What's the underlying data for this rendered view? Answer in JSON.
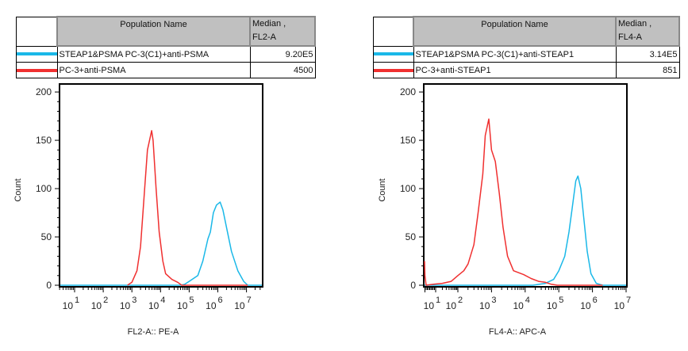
{
  "chart_data": [
    {
      "type": "line",
      "legend": {
        "header_name": "Population Name",
        "header_stat": [
          "Median ,",
          "FL2-A"
        ],
        "rows": [
          {
            "name": "STEAP1&PSMA PC-3(C1)+anti-PSMA",
            "median": "9.20E5",
            "color": "#1ab8e8"
          },
          {
            "name": "PC-3+anti-PSMA",
            "median": "4500",
            "color": "#f03030"
          }
        ]
      },
      "xlabel": "FL2-A:: PE-A",
      "ylabel": "Count",
      "x_scale": "log",
      "xlim": [
        3,
        38000000
      ],
      "ylim": [
        0,
        205
      ],
      "yticks": [
        0,
        50,
        100,
        150,
        200
      ],
      "xticks_exp": [
        1,
        2,
        3,
        4,
        5,
        6,
        7
      ],
      "series": [
        {
          "color": "#1ab8e8",
          "points": [
            [
              3,
              0
            ],
            [
              50000,
              0
            ],
            [
              70000,
              1
            ],
            [
              100000,
              4
            ],
            [
              200000,
              10
            ],
            [
              300000,
              25
            ],
            [
              450000,
              48
            ],
            [
              550000,
              55
            ],
            [
              700000,
              75
            ],
            [
              900000,
              83
            ],
            [
              1200000,
              86
            ],
            [
              1500000,
              78
            ],
            [
              2000000,
              60
            ],
            [
              3000000,
              35
            ],
            [
              5000000,
              15
            ],
            [
              8000000,
              4
            ],
            [
              11000000,
              0
            ],
            [
              38000000,
              0
            ]
          ]
        },
        {
          "color": "#f03030",
          "points": [
            [
              700,
              0
            ],
            [
              1000,
              3
            ],
            [
              1500,
              15
            ],
            [
              2000,
              40
            ],
            [
              2800,
              100
            ],
            [
              3500,
              140
            ],
            [
              4900,
              160
            ],
            [
              5500,
              150
            ],
            [
              7000,
              100
            ],
            [
              9000,
              55
            ],
            [
              12000,
              25
            ],
            [
              15000,
              12
            ],
            [
              25000,
              6
            ],
            [
              40000,
              3
            ],
            [
              55000,
              0
            ],
            [
              11000000,
              0
            ]
          ]
        }
      ]
    },
    {
      "type": "line",
      "legend": {
        "header_name": "Population Name",
        "header_stat": [
          "Median ,",
          "FL4-A"
        ],
        "rows": [
          {
            "name": "STEAP1&PSMA PC-3(C1)+anti-STEAP1",
            "median": "3.14E5",
            "color": "#1ab8e8"
          },
          {
            "name": "PC-3+anti-STEAP1",
            "median": "851",
            "color": "#f03030"
          }
        ]
      },
      "xlabel": "FL4-A:: APC-A",
      "ylabel": "Count",
      "x_scale": "biexponential",
      "xlim": [
        0,
        40000000
      ],
      "ylim": [
        0,
        205
      ],
      "yticks": [
        0,
        50,
        100,
        150,
        200
      ],
      "xticks_exp": [
        1,
        2,
        3,
        4,
        5,
        6,
        7
      ],
      "series": [
        {
          "color": "#1ab8e8",
          "points": [
            [
              0,
              0
            ],
            [
              17000,
              0
            ],
            [
              40000,
              2
            ],
            [
              70000,
              6
            ],
            [
              100000,
              15
            ],
            [
              150000,
              30
            ],
            [
              200000,
              55
            ],
            [
              250000,
              80
            ],
            [
              320000,
              108
            ],
            [
              370000,
              113
            ],
            [
              450000,
              100
            ],
            [
              550000,
              70
            ],
            [
              700000,
              35
            ],
            [
              900000,
              12
            ],
            [
              1300000,
              2
            ],
            [
              2000000,
              0
            ],
            [
              40000000,
              0
            ]
          ]
        },
        {
          "color": "#f03030",
          "points": [
            [
              0.2,
              25
            ],
            [
              1,
              10
            ],
            [
              2,
              0
            ],
            [
              8,
              1
            ],
            [
              20,
              2
            ],
            [
              50,
              4
            ],
            [
              100,
              10
            ],
            [
              150,
              15
            ],
            [
              200,
              22
            ],
            [
              300,
              42
            ],
            [
              400,
              75
            ],
            [
              550,
              115
            ],
            [
              650,
              155
            ],
            [
              830,
              172
            ],
            [
              1000,
              140
            ],
            [
              1300,
              128
            ],
            [
              1700,
              95
            ],
            [
              2200,
              60
            ],
            [
              3000,
              30
            ],
            [
              4500,
              15
            ],
            [
              9000,
              11
            ],
            [
              15000,
              7
            ],
            [
              25000,
              4
            ],
            [
              40000,
              3
            ],
            [
              60000,
              1
            ],
            [
              90000,
              0
            ],
            [
              2000000,
              0
            ]
          ]
        }
      ]
    }
  ]
}
